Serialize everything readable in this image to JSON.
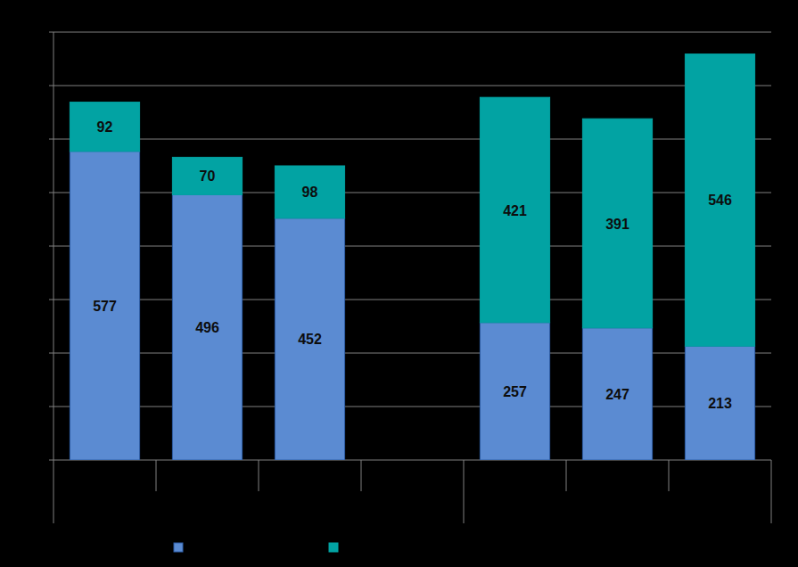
{
  "chart_data": {
    "type": "bar",
    "stacked": true,
    "data_labels": true,
    "grid": true,
    "tick_labels": false,
    "categories": [
      null,
      null,
      null,
      null,
      null,
      null,
      null
    ],
    "series": [
      {
        "color": "#5b8bd2",
        "values": [
          577,
          496,
          452,
          null,
          257,
          247,
          213
        ]
      },
      {
        "color": "#02a3a3",
        "values": [
          92,
          70,
          98,
          null,
          421,
          391,
          546
        ]
      }
    ],
    "ylim": [
      0,
      800
    ],
    "yticks": [
      0,
      100,
      200,
      300,
      400,
      500,
      600,
      700,
      800
    ]
  }
}
